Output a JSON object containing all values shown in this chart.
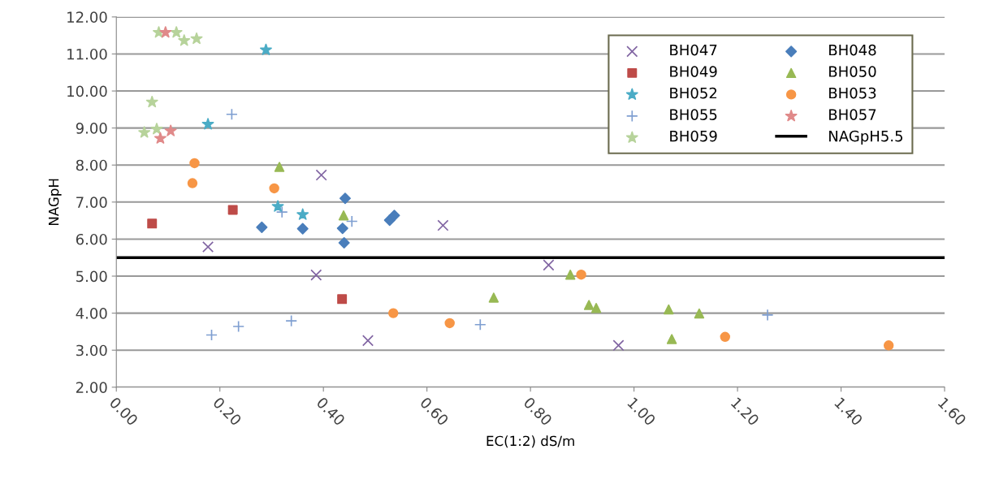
{
  "chart_data": {
    "type": "scatter",
    "xlabel": "EC(1:2) dS/m",
    "ylabel": "NAGpH",
    "xlim": [
      0,
      1.6
    ],
    "ylim": [
      2,
      12
    ],
    "xticks": [
      {
        "value": 0,
        "label": "0.00"
      },
      {
        "value": 0.2,
        "label": "0.20"
      },
      {
        "value": 0.4,
        "label": "0.40"
      },
      {
        "value": 0.6,
        "label": "0.60"
      },
      {
        "value": 0.8,
        "label": "0.80"
      },
      {
        "value": 1.0,
        "label": "1.00"
      },
      {
        "value": 1.2,
        "label": "1.20"
      },
      {
        "value": 1.4,
        "label": "1.40"
      },
      {
        "value": 1.6,
        "label": "1.60"
      }
    ],
    "yticks": [
      {
        "value": 2,
        "label": "2.00"
      },
      {
        "value": 3,
        "label": "3.00"
      },
      {
        "value": 4,
        "label": "4.00"
      },
      {
        "value": 5,
        "label": "5.00"
      },
      {
        "value": 6,
        "label": "6.00"
      },
      {
        "value": 7,
        "label": "7.00"
      },
      {
        "value": 8,
        "label": "8.00"
      },
      {
        "value": 9,
        "label": "9.00"
      },
      {
        "value": 10,
        "label": "10.00"
      },
      {
        "value": 11,
        "label": "11.00"
      },
      {
        "value": 12,
        "label": "12.00"
      }
    ],
    "grid": "y",
    "legend": "top right",
    "series": [
      {
        "name": "BH047",
        "color": "#8064a2",
        "marker": "cross",
        "x": [
          0.177,
          0.396,
          0.386,
          0.486,
          0.631,
          0.835,
          0.97
        ],
        "values": [
          5.79,
          7.73,
          5.03,
          3.26,
          6.37,
          5.3,
          3.13
        ]
      },
      {
        "name": "BH048",
        "color": "#4a7ebb",
        "marker": "diamond",
        "x": [
          0.281,
          0.36,
          0.437,
          0.44,
          0.442,
          0.528,
          0.537
        ],
        "values": [
          6.32,
          6.28,
          6.29,
          5.9,
          7.1,
          6.51,
          6.64
        ]
      },
      {
        "name": "BH049",
        "color": "#be4b48",
        "marker": "square",
        "x": [
          0.069,
          0.225,
          0.436
        ],
        "values": [
          6.42,
          6.79,
          4.38
        ]
      },
      {
        "name": "BH050",
        "color": "#98b954",
        "marker": "triangle",
        "x": [
          0.315,
          0.439,
          0.729,
          0.877,
          0.913,
          0.927,
          1.067,
          1.126,
          1.073
        ],
        "values": [
          7.95,
          6.64,
          4.42,
          5.04,
          4.22,
          4.14,
          4.1,
          3.99,
          3.3
        ]
      },
      {
        "name": "BH052",
        "color": "#4bacc6",
        "marker": "star",
        "x": [
          0.289,
          0.177,
          0.312,
          0.36
        ],
        "values": [
          11.11,
          9.1,
          6.88,
          6.66
        ]
      },
      {
        "name": "BH053",
        "color": "#f79646",
        "marker": "circle",
        "x": [
          0.151,
          0.147,
          0.305,
          0.535,
          0.644,
          0.898,
          1.176,
          1.492
        ],
        "values": [
          8.05,
          7.51,
          7.37,
          4.0,
          3.73,
          5.04,
          3.36,
          3.13
        ]
      },
      {
        "name": "BH055",
        "color": "#7f9fd1",
        "marker": "plus",
        "x": [
          0.223,
          0.32,
          0.455,
          0.184,
          0.236,
          0.338,
          0.703,
          1.258
        ],
        "values": [
          9.37,
          6.73,
          6.48,
          3.41,
          3.64,
          3.79,
          3.69,
          3.95
        ]
      },
      {
        "name": "BH057",
        "color": "#e08a8a",
        "marker": "star",
        "x": [
          0.095,
          0.105,
          0.085
        ],
        "values": [
          11.58,
          8.92,
          8.72
        ]
      },
      {
        "name": "BH059",
        "color": "#b7d39b",
        "marker": "star",
        "x": [
          0.082,
          0.116,
          0.131,
          0.155,
          0.069,
          0.054,
          0.078
        ],
        "values": [
          11.58,
          11.58,
          11.36,
          11.41,
          9.7,
          8.88,
          8.97
        ]
      }
    ],
    "ref_lines": [
      {
        "axis": "y",
        "value": 5.5,
        "label": "NAGpH5.5",
        "color": "#000000",
        "line_style": "solid"
      }
    ]
  }
}
